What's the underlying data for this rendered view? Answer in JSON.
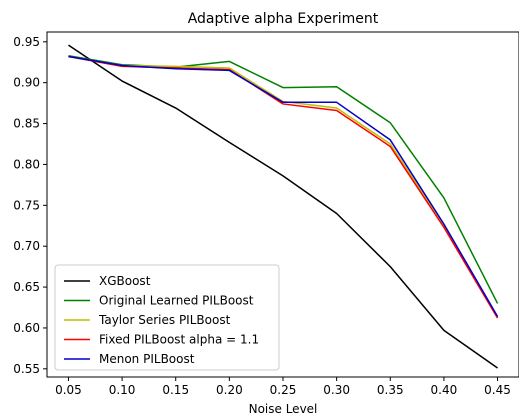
{
  "chart_data": {
    "type": "line",
    "title": "Adaptive alpha Experiment",
    "xlabel": "Noise Level",
    "ylabel": "",
    "x": [
      0.05,
      0.1,
      0.15,
      0.2,
      0.25,
      0.3,
      0.35,
      0.4,
      0.45
    ],
    "x_tick_labels": [
      "0.05",
      "0.10",
      "0.15",
      "0.20",
      "0.25",
      "0.30",
      "0.35",
      "0.40",
      "0.45"
    ],
    "y_ticks": [
      0.55,
      0.6,
      0.65,
      0.7,
      0.75,
      0.8,
      0.85,
      0.9,
      0.95
    ],
    "y_tick_labels": [
      "0.55",
      "0.60",
      "0.65",
      "0.70",
      "0.75",
      "0.80",
      "0.85",
      "0.90",
      "0.95"
    ],
    "xlim": [
      0.03,
      0.47
    ],
    "ylim": [
      0.54,
      0.962
    ],
    "grid": false,
    "legend_position": "lower-left",
    "series": [
      {
        "name": "XGBoost",
        "color": "#000000",
        "values": [
          0.946,
          0.902,
          0.869,
          0.827,
          0.786,
          0.74,
          0.675,
          0.597,
          0.551
        ]
      },
      {
        "name": "Original Learned PILBoost",
        "color": "#008000",
        "values": [
          0.933,
          0.922,
          0.919,
          0.926,
          0.894,
          0.895,
          0.851,
          0.759,
          0.63
        ]
      },
      {
        "name": "Taylor Series PILBoost",
        "color": "#bfbf00",
        "values": [
          0.932,
          0.921,
          0.92,
          0.918,
          0.877,
          0.869,
          0.825,
          0.726,
          0.613
        ]
      },
      {
        "name": "Fixed PILBoost alpha = 1.1",
        "color": "#ff0000",
        "values": [
          0.932,
          0.92,
          0.918,
          0.916,
          0.874,
          0.866,
          0.822,
          0.723,
          0.612
        ]
      },
      {
        "name": "Menon PILBoost",
        "color": "#0000cc",
        "values": [
          0.932,
          0.921,
          0.917,
          0.915,
          0.876,
          0.876,
          0.83,
          0.727,
          0.614
        ]
      }
    ]
  }
}
